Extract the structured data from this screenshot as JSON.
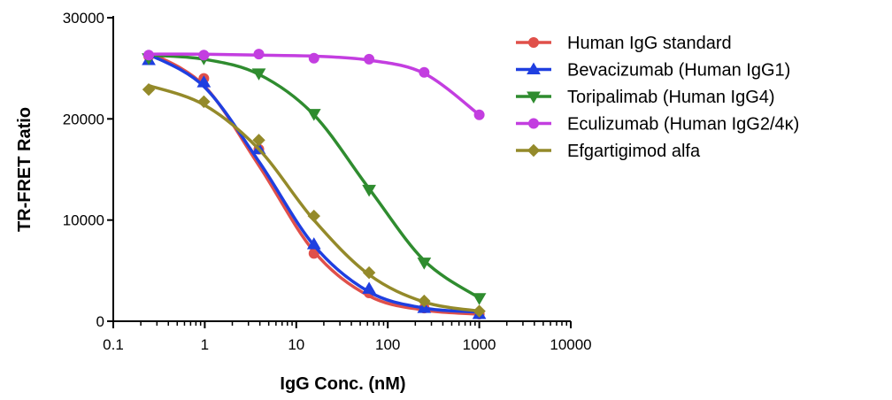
{
  "chart_data": {
    "type": "line",
    "title": "",
    "xlabel": "IgG Conc. (nM)",
    "ylabel": "TR-FRET Ratio",
    "x_scale": "log",
    "xlim": [
      0.1,
      10000
    ],
    "ylim": [
      0,
      30000
    ],
    "x_ticks": [
      0.1,
      1,
      10,
      100,
      1000,
      10000
    ],
    "x_tick_labels": [
      "0.1",
      "1",
      "10",
      "100",
      "1000",
      "10000"
    ],
    "y_ticks": [
      0,
      10000,
      20000,
      30000
    ],
    "y_tick_labels": [
      "0",
      "10000",
      "20000",
      "30000"
    ],
    "grid": false,
    "legend_position": "top-right",
    "x": [
      0.244,
      0.977,
      3.9,
      15.6,
      62.5,
      250,
      1000
    ],
    "series": [
      {
        "name": "Human IgG standard",
        "color": "#e0504a",
        "marker": "circle",
        "values": [
          26200,
          24000,
          17000,
          6700,
          2800,
          1300,
          700
        ],
        "fit": [
          26600,
          23300,
          15400,
          6900,
          2500,
          1100,
          700
        ]
      },
      {
        "name": "Bevacizumab (Human IgG1)",
        "color": "#1f3fe0",
        "marker": "triangle-up",
        "values": [
          25800,
          23600,
          17000,
          7600,
          3200,
          1300,
          700
        ],
        "fit": [
          26400,
          23200,
          15800,
          7500,
          2900,
          1300,
          900
        ]
      },
      {
        "name": "Toripalimab (Human IgG4)",
        "color": "#2f8c2f",
        "marker": "triangle-down",
        "values": [
          26000,
          26000,
          24500,
          20500,
          13000,
          5800,
          2300
        ],
        "fit": [
          26300,
          25900,
          24400,
          20400,
          13100,
          6000,
          2300
        ]
      },
      {
        "name": "Eculizumab (Human IgG2/4κ)",
        "color": "#c33ee0",
        "marker": "circle",
        "values": [
          26300,
          26300,
          26400,
          26000,
          25900,
          24600,
          20400
        ],
        "fit": [
          26400,
          26400,
          26300,
          26200,
          25800,
          24500,
          20400
        ]
      },
      {
        "name": "Efgartigimod alfa",
        "color": "#948a2a",
        "marker": "diamond",
        "values": [
          22900,
          21700,
          17900,
          10400,
          4800,
          2000,
          1000
        ],
        "fit": [
          23300,
          21400,
          17000,
          10000,
          4600,
          1900,
          1000
        ]
      }
    ]
  }
}
